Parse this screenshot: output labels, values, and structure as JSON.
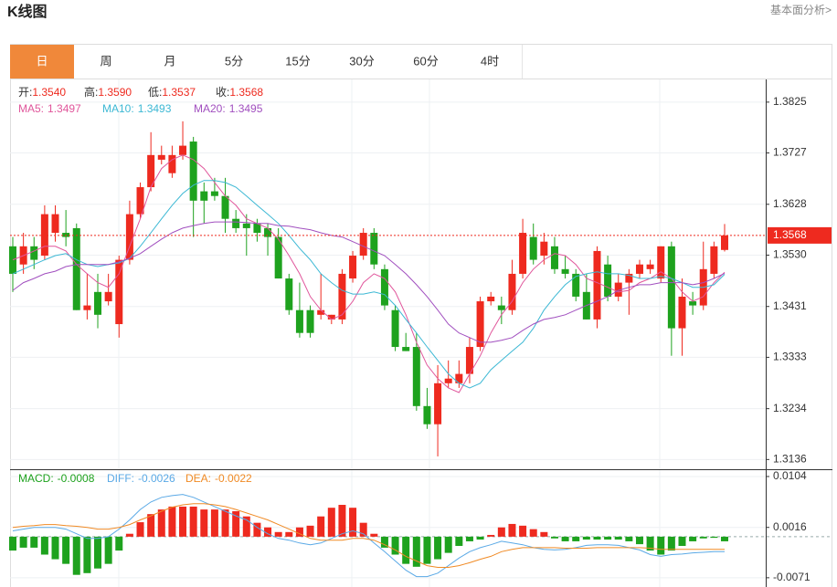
{
  "header": {
    "title": "K线图",
    "link": "基本面分析>"
  },
  "tabs": {
    "items": [
      "日",
      "周",
      "月",
      "5分",
      "15分",
      "30分",
      "60分",
      "4时"
    ],
    "active": 0,
    "active_color": "#f0883a"
  },
  "chart_data": [
    {
      "type": "candlestick",
      "up_color": "#ee2a1f",
      "down_color": "#1ea21e",
      "grid": true,
      "ylim": [
        1.3119,
        1.3867
      ],
      "yticks": [
        1.3825,
        1.3727,
        1.3628,
        {
          "value": 1.353,
          "label": "1.3530"
        },
        1.3431,
        1.3333,
        1.3234,
        1.3136
      ],
      "open": [
        1.3547,
        1.3512,
        1.3547,
        1.3529,
        1.3573,
        1.3573,
        1.3582,
        1.3424,
        1.3459,
        1.3441,
        1.3397,
        1.3521,
        1.3609,
        1.3661,
        1.3714,
        1.3688,
        1.3723,
        1.3749,
        1.3653,
        1.3653,
        1.3644,
        1.36,
        1.3591,
        1.3591,
        1.3582,
        1.3565,
        1.3485,
        1.3424,
        1.3424,
        1.3415,
        1.3406,
        1.3406,
        1.3485,
        1.3529,
        1.3573,
        1.3503,
        1.3424,
        1.3353,
        1.3353,
        1.3239,
        1.3204,
        1.3283,
        1.3283,
        1.3301,
        1.3353,
        1.3441,
        1.3433,
        1.3424,
        1.3494,
        1.3565,
        1.3529,
        1.3547,
        1.3503,
        1.3494,
        1.3459,
        1.3406,
        1.3512,
        1.345,
        1.3477,
        1.3494,
        1.3503,
        1.3485,
        1.3547,
        1.3389,
        1.3441,
        1.3433,
        1.3494,
        1.354
      ],
      "high": [
        1.3565,
        1.3573,
        1.3565,
        1.3626,
        1.3626,
        1.3617,
        1.3591,
        1.3494,
        1.3494,
        1.3494,
        1.3529,
        1.3635,
        1.367,
        1.3767,
        1.3741,
        1.3741,
        1.3788,
        1.3758,
        1.367,
        1.3679,
        1.3679,
        1.3617,
        1.3609,
        1.36,
        1.3591,
        1.3582,
        1.3494,
        1.3477,
        1.3433,
        1.3494,
        1.3415,
        1.3503,
        1.3538,
        1.3582,
        1.3582,
        1.3512,
        1.3433,
        1.338,
        1.338,
        1.3274,
        1.3318,
        1.3327,
        1.3327,
        1.3371,
        1.345,
        1.3459,
        1.345,
        1.3521,
        1.36,
        1.3591,
        1.3573,
        1.3565,
        1.3529,
        1.3503,
        1.3494,
        1.3547,
        1.3529,
        1.3494,
        1.3503,
        1.3521,
        1.3521,
        1.3547,
        1.3556,
        1.3485,
        1.3459,
        1.3556,
        1.3556,
        1.359
      ],
      "low": [
        1.3459,
        1.3494,
        1.3503,
        1.3521,
        1.3556,
        1.3547,
        1.3424,
        1.3406,
        1.3389,
        1.3433,
        1.3371,
        1.3512,
        1.36,
        1.3653,
        1.3705,
        1.3679,
        1.3714,
        1.3565,
        1.3591,
        1.3635,
        1.3573,
        1.3573,
        1.3529,
        1.3556,
        1.3529,
        1.3485,
        1.3415,
        1.3371,
        1.3371,
        1.3406,
        1.3397,
        1.3397,
        1.3477,
        1.3521,
        1.3503,
        1.3424,
        1.3345,
        1.3345,
        1.323,
        1.3195,
        1.3142,
        1.3274,
        1.3274,
        1.3283,
        1.3345,
        1.3433,
        1.3397,
        1.3415,
        1.3485,
        1.3512,
        1.3512,
        1.3494,
        1.3485,
        1.3441,
        1.3406,
        1.3389,
        1.3441,
        1.3441,
        1.3415,
        1.3485,
        1.3494,
        1.3477,
        1.3336,
        1.3336,
        1.3415,
        1.3424,
        1.3485,
        1.3537
      ],
      "close": [
        1.3494,
        1.3547,
        1.3521,
        1.3609,
        1.3609,
        1.3565,
        1.3424,
        1.3433,
        1.3415,
        1.3459,
        1.3521,
        1.3609,
        1.3661,
        1.3723,
        1.3723,
        1.3723,
        1.3741,
        1.3635,
        1.3635,
        1.3644,
        1.36,
        1.3582,
        1.3582,
        1.3573,
        1.3565,
        1.3485,
        1.3424,
        1.338,
        1.338,
        1.3424,
        1.3415,
        1.3494,
        1.3529,
        1.3573,
        1.3512,
        1.3433,
        1.3353,
        1.3345,
        1.3239,
        1.3204,
        1.3283,
        1.3292,
        1.3301,
        1.3353,
        1.3441,
        1.345,
        1.3424,
        1.3494,
        1.3573,
        1.3521,
        1.3556,
        1.3503,
        1.3494,
        1.345,
        1.3406,
        1.3538,
        1.345,
        1.3477,
        1.3494,
        1.3512,
        1.3512,
        1.3547,
        1.3389,
        1.345,
        1.3433,
        1.3503,
        1.3547,
        1.3568
      ],
      "ohlc_legend": {
        "names": [
          "开:",
          "高:",
          "低:",
          "收:"
        ],
        "value_labels": [
          "1.3540",
          "1.3590",
          "1.3537",
          "1.3568"
        ]
      },
      "series": [
        {
          "name": "MA5:",
          "color": "#e0569b",
          "values": [
            1.3521,
            1.3529,
            1.3538,
            1.3547,
            1.3547,
            1.3538,
            1.3512,
            1.3494,
            1.3477,
            1.3468,
            1.3494,
            1.3547,
            1.36,
            1.3661,
            1.3697,
            1.3714,
            1.3723,
            1.3714,
            1.3697,
            1.367,
            1.3644,
            1.3626,
            1.36,
            1.3591,
            1.3582,
            1.3561,
            1.3529,
            1.3494,
            1.345,
            1.3424,
            1.3406,
            1.3415,
            1.3441,
            1.3477,
            1.3494,
            1.3485,
            1.3459,
            1.3415,
            1.3362,
            1.3318,
            1.3292,
            1.3274,
            1.3265,
            1.3301,
            1.3336,
            1.338,
            1.3415,
            1.3441,
            1.3477,
            1.3503,
            1.3521,
            1.3533,
            1.3529,
            1.3512,
            1.3485,
            1.3477,
            1.3468,
            1.3459,
            1.3462,
            1.3477,
            1.3485,
            1.3498,
            1.3485,
            1.3459,
            1.3441,
            1.345,
            1.3477,
            1.3497
          ]
        },
        {
          "name": "MA10:",
          "color": "#3cb8d4",
          "values": [
            1.3494,
            1.3503,
            1.3512,
            1.3521,
            1.3529,
            1.3533,
            1.3521,
            1.3512,
            1.3508,
            1.3512,
            1.3515,
            1.3524,
            1.3547,
            1.3573,
            1.36,
            1.3626,
            1.3649,
            1.3665,
            1.3674,
            1.3674,
            1.367,
            1.3661,
            1.3644,
            1.3626,
            1.3609,
            1.3591,
            1.3568,
            1.3543,
            1.3521,
            1.3494,
            1.3477,
            1.3462,
            1.3455,
            1.3455,
            1.3459,
            1.3454,
            1.3433,
            1.3406,
            1.338,
            1.3353,
            1.3327,
            1.3301,
            1.3283,
            1.3274,
            1.3283,
            1.3309,
            1.3327,
            1.3345,
            1.3362,
            1.3389,
            1.3424,
            1.345,
            1.3473,
            1.3489,
            1.3494,
            1.3498,
            1.3494,
            1.3494,
            1.3491,
            1.3485,
            1.3485,
            1.3489,
            1.3485,
            1.3477,
            1.3468,
            1.3468,
            1.3473,
            1.3493
          ]
        },
        {
          "name": "MA20:",
          "color": "#a14fbf",
          "values": [
            1.3462,
            1.3477,
            1.3485,
            1.3494,
            1.3499,
            1.3508,
            1.3512,
            1.3512,
            1.3512,
            1.3512,
            1.3517,
            1.3524,
            1.3533,
            1.3547,
            1.3561,
            1.3573,
            1.3582,
            1.3587,
            1.3591,
            1.3594,
            1.3594,
            1.3594,
            1.3593,
            1.3591,
            1.3591,
            1.3587,
            1.3586,
            1.3582,
            1.3579,
            1.3573,
            1.3568,
            1.3565,
            1.3556,
            1.3547,
            1.3538,
            1.3529,
            1.3512,
            1.3494,
            1.3473,
            1.345,
            1.3424,
            1.3397,
            1.338,
            1.3371,
            1.3362,
            1.3362,
            1.3366,
            1.3371,
            1.3385,
            1.3397,
            1.3406,
            1.341,
            1.3415,
            1.3424,
            1.3433,
            1.3441,
            1.345,
            1.3462,
            1.3468,
            1.3473,
            1.3473,
            1.3477,
            1.3477,
            1.3477,
            1.3473,
            1.3477,
            1.3485,
            1.3495
          ]
        }
      ]
    },
    {
      "type": "macd",
      "up_color": "#ee2a1f",
      "down_color": "#1ea21e",
      "ylim": [
        -0.0087,
        0.0115
      ],
      "yticks": [
        0.0104,
        0.0016,
        -0.0071
      ],
      "series": [
        {
          "name": "MACD:",
          "type": "bar",
          "values": [
            -0.0024,
            -0.0019,
            -0.0019,
            -0.0031,
            -0.0039,
            -0.0047,
            -0.0066,
            -0.0063,
            -0.0055,
            -0.0047,
            -0.0024,
            0.0005,
            0.0025,
            0.0039,
            0.0047,
            0.0052,
            0.0052,
            0.0052,
            0.0047,
            0.0047,
            0.0047,
            0.0044,
            0.0035,
            0.0024,
            0.0016,
            0.0008,
            0.0008,
            0.0016,
            0.0019,
            0.0035,
            0.005,
            0.0055,
            0.005,
            0.0024,
            0.0005,
            -0.0019,
            -0.0031,
            -0.0047,
            -0.0052,
            -0.0047,
            -0.0039,
            -0.0028,
            -0.0016,
            -0.0008,
            -0.0005,
            0.0003,
            0.0016,
            0.0022,
            0.0019,
            0.0013,
            0.0008,
            -0.0003,
            -0.0008,
            -0.0008,
            -0.0005,
            -0.0005,
            -0.0005,
            -0.0005,
            -0.0008,
            -0.0013,
            -0.0024,
            -0.0031,
            -0.0024,
            -0.0016,
            -0.0008,
            -0.0003,
            -0.0002,
            -0.0008
          ]
        },
        {
          "name": "DIFF:",
          "type": "line",
          "color": "#5aa9e6",
          "values": [
            0.001,
            0.0013,
            0.0016,
            0.0016,
            0.0016,
            0.0013,
            0.0005,
            -0.0003,
            -0.0003,
            0.0,
            0.0013,
            0.0029,
            0.0047,
            0.006,
            0.0068,
            0.0071,
            0.0073,
            0.0068,
            0.006,
            0.0052,
            0.0044,
            0.0036,
            0.0029,
            0.0016,
            0.0005,
            -0.0003,
            -0.0006,
            -0.0011,
            -0.0014,
            -0.0011,
            -0.0003,
            0.0005,
            0.001,
            0.0005,
            -0.0011,
            -0.0026,
            -0.0042,
            -0.0058,
            -0.0069,
            -0.0069,
            -0.0063,
            -0.005,
            -0.0037,
            -0.0026,
            -0.0019,
            -0.0014,
            -0.0008,
            -0.0011,
            -0.0014,
            -0.0019,
            -0.0022,
            -0.0023,
            -0.0022,
            -0.0019,
            -0.0015,
            -0.0014,
            -0.0014,
            -0.0015,
            -0.0019,
            -0.0023,
            -0.0031,
            -0.0034,
            -0.0031,
            -0.003,
            -0.0028,
            -0.0027,
            -0.0026,
            -0.0026
          ]
        },
        {
          "name": "DEA:",
          "type": "line",
          "color": "#f08a24",
          "values": [
            0.0016,
            0.0018,
            0.0019,
            0.0021,
            0.0021,
            0.0019,
            0.0018,
            0.0016,
            0.0013,
            0.0013,
            0.0016,
            0.0021,
            0.0029,
            0.0036,
            0.0044,
            0.0051,
            0.0055,
            0.0057,
            0.0057,
            0.0055,
            0.0052,
            0.0047,
            0.0041,
            0.0035,
            0.0029,
            0.0021,
            0.0013,
            0.0005,
            -0.0003,
            -0.0006,
            -0.0006,
            -0.0006,
            -0.0003,
            -0.0003,
            -0.0006,
            -0.0014,
            -0.0023,
            -0.0034,
            -0.0042,
            -0.005,
            -0.0053,
            -0.0053,
            -0.005,
            -0.0045,
            -0.0039,
            -0.0034,
            -0.0026,
            -0.0022,
            -0.0019,
            -0.0019,
            -0.0019,
            -0.0019,
            -0.002,
            -0.002,
            -0.002,
            -0.0019,
            -0.0019,
            -0.0019,
            -0.0019,
            -0.0019,
            -0.002,
            -0.0022,
            -0.0022,
            -0.0022,
            -0.0022,
            -0.0022,
            -0.0022,
            -0.0022
          ]
        }
      ]
    }
  ]
}
